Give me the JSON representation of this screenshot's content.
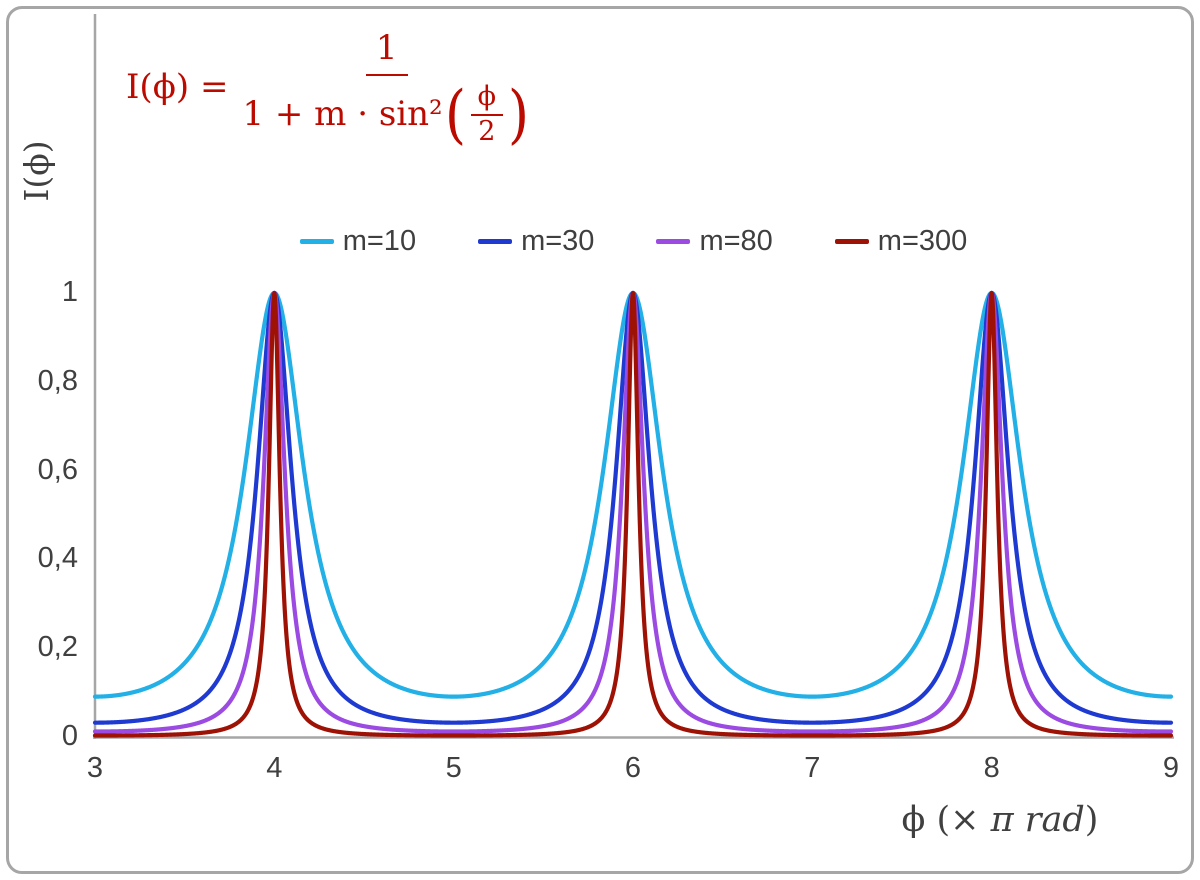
{
  "formula": {
    "lhs": "I(ϕ) =",
    "numerator": "1",
    "den_text": "1 + m · sin²",
    "open_paren": "(",
    "inner_num": "ϕ",
    "inner_den": "2",
    "close_paren": ")",
    "color": "#bb0b00"
  },
  "axes": {
    "y_title": "I(ϕ)",
    "x_title_prefix": "ϕ  (× ",
    "x_title_italic": "π rad",
    "x_title_suffix": ")",
    "y_tick_labels": [
      "1",
      "0,8",
      "0,6",
      "0,4",
      "0,2",
      "0"
    ],
    "x_tick_labels": [
      "3",
      "4",
      "5",
      "6",
      "7",
      "8",
      "9"
    ],
    "text_color": "#404040",
    "line_color": "#a6a6a6"
  },
  "chart_data": {
    "type": "line",
    "title": "",
    "xlabel": "ϕ (× π rad)",
    "ylabel": "I(ϕ)",
    "x_range": [
      3,
      9
    ],
    "y_range": [
      0,
      1
    ],
    "x_ticks": [
      3,
      4,
      5,
      6,
      7,
      8,
      9
    ],
    "y_ticks": [
      0,
      0.2,
      0.4,
      0.6,
      0.8,
      1
    ],
    "function": "I(ϕ) = 1 / (1 + m · sin²(ϕ/2)), ϕ expressed in units of π rad",
    "peaks_at_x": [
      4,
      6,
      8
    ],
    "peak_value": 1,
    "grid": false,
    "legend_position": "top-center",
    "series": [
      {
        "name": "m10",
        "label": "m=10",
        "m": 10,
        "color": "#22b0e6",
        "min_value": 0.0909
      },
      {
        "name": "m30",
        "label": "m=30",
        "m": 30,
        "color": "#1e3ad1",
        "min_value": 0.0323
      },
      {
        "name": "m80",
        "label": "m=80",
        "m": 80,
        "color": "#9c4be2",
        "min_value": 0.0123
      },
      {
        "name": "m300",
        "label": "m=300",
        "m": 300,
        "color": "#9e1206",
        "min_value": 0.0033
      }
    ]
  }
}
